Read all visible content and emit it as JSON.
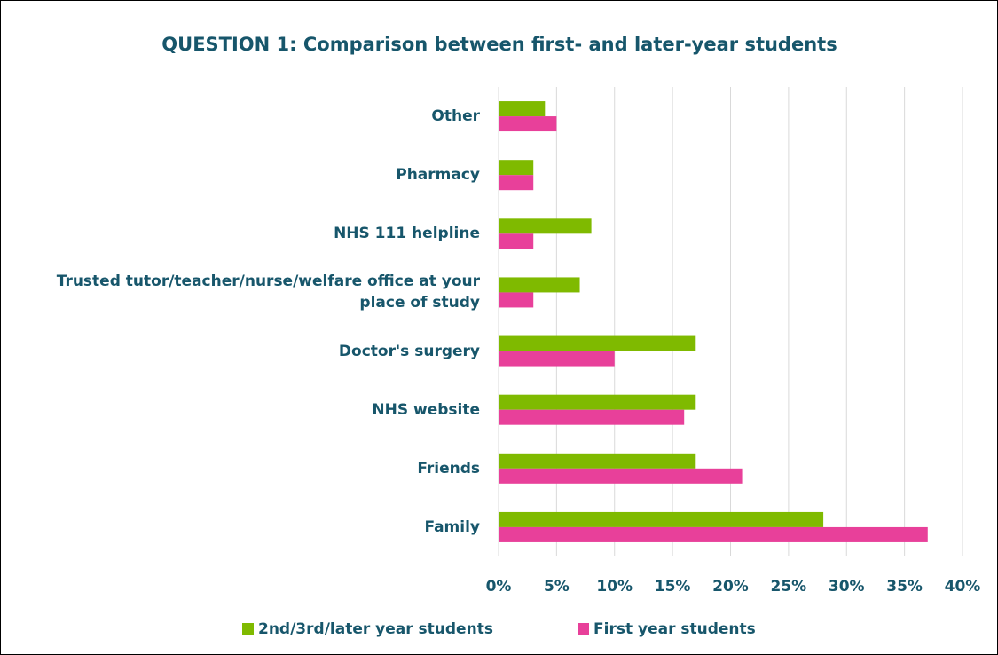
{
  "chart_data": {
    "type": "hbar",
    "title": "QUESTION 1: Comparison between first- and later-year students",
    "categories": [
      "Other",
      "Pharmacy",
      "NHS 111 helpline",
      "Trusted tutor/teacher/nurse/welfare office at your place of study",
      "Doctor's surgery",
      "NHS website",
      "Friends",
      "Family"
    ],
    "series": [
      {
        "name": "2nd/3rd/later year students",
        "color": "#7fba00",
        "values": [
          4,
          3,
          8,
          7,
          17,
          17,
          17,
          28
        ]
      },
      {
        "name": "First year students",
        "color": "#e8409a",
        "values": [
          5,
          3,
          3,
          3,
          10,
          16,
          21,
          37
        ]
      }
    ],
    "xlim": [
      0,
      40
    ],
    "xticks": [
      {
        "value": 0,
        "label": "0%"
      },
      {
        "value": 5,
        "label": "5%"
      },
      {
        "value": 10,
        "label": "10%"
      },
      {
        "value": 15,
        "label": "15%"
      },
      {
        "value": 20,
        "label": "20%"
      },
      {
        "value": 25,
        "label": "25%"
      },
      {
        "value": 30,
        "label": "30%"
      },
      {
        "value": 35,
        "label": "35%"
      },
      {
        "value": 40,
        "label": "40%"
      }
    ],
    "grid": true,
    "legend": "bottom"
  }
}
